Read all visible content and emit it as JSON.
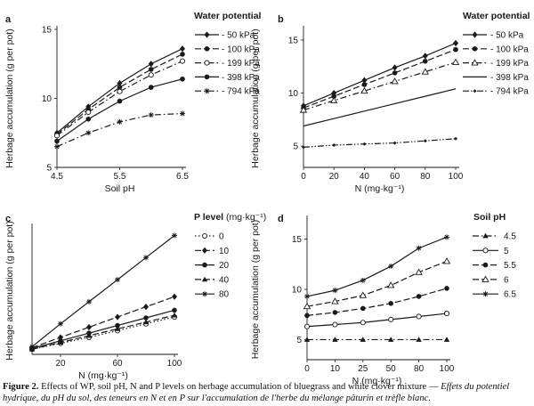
{
  "caption": {
    "label": "Figure 2.",
    "text": " Effects of WP, soil pH, N and P levels on herbage accumulation of bluegrass and white clover mixture — ",
    "italic": "Effets du potentiel hydrique, du pH du sol, des teneurs en N et en P sur l'accumulation de l'herbe du mélange pâturin et trèfle blanc."
  },
  "chart_data": [
    {
      "panel": "a",
      "type": "line",
      "title": "",
      "xlabel": "Soil pH",
      "ylabel": "Herbage accumulation (g per pot)",
      "xlim": [
        4.5,
        6.5
      ],
      "ylim": [
        5,
        15
      ],
      "xticks": [
        "4.5",
        "5.5",
        "6.5"
      ],
      "yticks": [
        "5",
        "10",
        "15"
      ],
      "legend_title": "Water potential",
      "legend_position": "right",
      "x": [
        4.5,
        5.0,
        5.5,
        6.0,
        6.5
      ],
      "series": [
        {
          "name": "- 50 kPa",
          "values": [
            7.5,
            9.4,
            11.1,
            12.5,
            13.6
          ],
          "marker": "diamond",
          "dash": "solid"
        },
        {
          "name": "- 100 kPa",
          "values": [
            7.4,
            9.2,
            10.8,
            12.1,
            13.2
          ],
          "marker": "circle-filled",
          "dash": "dashed"
        },
        {
          "name": "- 199 kPa",
          "values": [
            7.3,
            9.0,
            10.5,
            11.7,
            12.7
          ],
          "marker": "circle-open",
          "dash": "dashdot"
        },
        {
          "name": "- 398 kPa",
          "values": [
            6.9,
            8.5,
            9.8,
            10.8,
            11.4
          ],
          "marker": "circle-filled",
          "dash": "solid"
        },
        {
          "name": "- 794 kPa",
          "values": [
            6.5,
            7.5,
            8.3,
            8.8,
            8.9
          ],
          "marker": "star",
          "dash": "dashdot"
        }
      ]
    },
    {
      "panel": "b",
      "type": "line",
      "title": "",
      "xlabel": "N (mg·kg⁻¹)",
      "ylabel": "Herbage accumulation (g per pot)",
      "xlim": [
        0,
        100
      ],
      "ylim": [
        3,
        16
      ],
      "xticks": [
        "0",
        "20",
        "40",
        "60",
        "80",
        "100"
      ],
      "yticks": [
        "5",
        "10",
        "15"
      ],
      "legend_title": "Water potential",
      "legend_position": "right",
      "x": [
        0,
        20,
        40,
        60,
        80,
        100
      ],
      "series": [
        {
          "name": "- 50 kPa",
          "values": [
            8.8,
            10.0,
            11.2,
            12.4,
            13.5,
            14.7
          ],
          "marker": "diamond",
          "dash": "solid"
        },
        {
          "name": "- 100 kPa",
          "values": [
            8.6,
            9.7,
            10.8,
            11.9,
            13.0,
            14.1
          ],
          "marker": "circle-filled",
          "dash": "dashed"
        },
        {
          "name": "- 199 kPa",
          "values": [
            8.4,
            9.3,
            10.2,
            11.1,
            12.0,
            12.9
          ],
          "marker": "triangle-open",
          "dash": "dashdot"
        },
        {
          "name": "- 398 kPa",
          "values": [
            6.9,
            7.6,
            8.3,
            9.0,
            9.7,
            10.4
          ],
          "marker": "none",
          "dash": "solid"
        },
        {
          "name": "- 794 kPa",
          "values": [
            4.9,
            5.1,
            5.2,
            5.3,
            5.5,
            5.7
          ],
          "marker": "diamond-small",
          "dash": "dashdotdot"
        }
      ]
    },
    {
      "panel": "c",
      "type": "line",
      "title": "",
      "xlabel": "N (mg·kg⁻¹)",
      "ylabel": "Herbage accumulation (g per pot)",
      "xlim": [
        0,
        100
      ],
      "ylim": [
        0,
        15
      ],
      "xticks": [
        "20",
        "60",
        "100"
      ],
      "yticks": [],
      "legend_title": "P level",
      "legend_title_suffix": " (mg·kg⁻¹)",
      "legend_position": "right",
      "x": [
        0,
        20,
        40,
        60,
        80,
        100
      ],
      "series": [
        {
          "name": "0",
          "values": [
            0.6,
            1.3,
            2.0,
            2.8,
            3.6,
            4.4
          ],
          "marker": "circle-open",
          "dash": "dotted"
        },
        {
          "name": "10",
          "values": [
            0.8,
            2.0,
            3.2,
            4.4,
            5.6,
            6.8
          ],
          "marker": "diamond",
          "dash": "dashed"
        },
        {
          "name": "20",
          "values": [
            0.7,
            1.6,
            2.5,
            3.4,
            4.3,
            5.2
          ],
          "marker": "circle-filled",
          "dash": "solid"
        },
        {
          "name": "40",
          "values": [
            0.6,
            1.4,
            2.2,
            3.0,
            3.8,
            4.6
          ],
          "marker": "triangle-filled",
          "dash": "dashed"
        },
        {
          "name": "80",
          "values": [
            0.9,
            3.6,
            6.2,
            8.8,
            11.4,
            14.0
          ],
          "marker": "star",
          "dash": "solid"
        }
      ]
    },
    {
      "panel": "d",
      "type": "line",
      "title": "",
      "xlabel": "N (mg·kg⁻¹)",
      "ylabel": "Herbage accumulation (g per pot)",
      "xlim": [
        0,
        5
      ],
      "ylim": [
        3,
        17
      ],
      "xticks": [
        "0",
        "10",
        "25",
        "50",
        "80",
        "100"
      ],
      "yticks": [
        "5",
        "10",
        "15"
      ],
      "legend_title": "Soil pH",
      "legend_position": "right",
      "x": [
        "0",
        "10",
        "25",
        "50",
        "80",
        "100"
      ],
      "series": [
        {
          "name": "4.5",
          "values": [
            5.0,
            5.0,
            5.0,
            5.0,
            5.0,
            5.0
          ],
          "marker": "triangle-filled",
          "dash": "dashdot"
        },
        {
          "name": "5",
          "values": [
            6.3,
            6.5,
            6.7,
            7.0,
            7.3,
            7.6
          ],
          "marker": "circle-open",
          "dash": "solid"
        },
        {
          "name": "5.5",
          "values": [
            7.4,
            7.7,
            8.1,
            8.6,
            9.3,
            10.1
          ],
          "marker": "circle-filled",
          "dash": "dashed"
        },
        {
          "name": "6",
          "values": [
            8.3,
            8.8,
            9.4,
            10.4,
            11.7,
            12.8
          ],
          "marker": "triangle-open",
          "dash": "dashed"
        },
        {
          "name": "6.5",
          "values": [
            9.3,
            9.9,
            10.9,
            12.3,
            14.1,
            15.2
          ],
          "marker": "star",
          "dash": "solid"
        }
      ]
    }
  ]
}
